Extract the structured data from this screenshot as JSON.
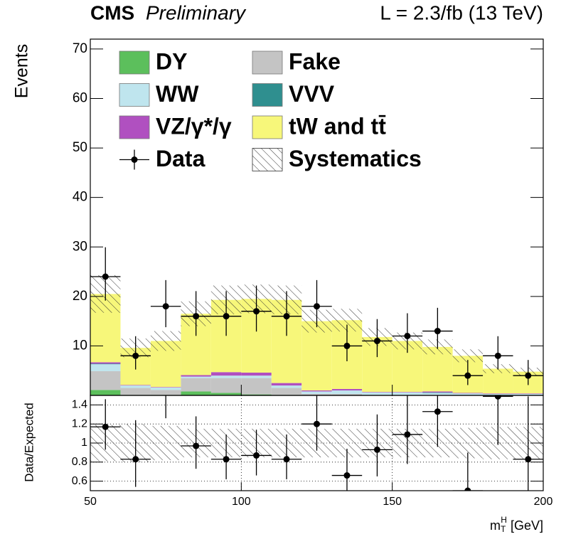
{
  "chart_data": [
    {
      "type": "stacked-histogram",
      "title": "CMS",
      "subtitle": "Preliminary",
      "lumi": "L = 2.3/fb (13 TeV)",
      "ylabel": "Events",
      "bins": [
        50,
        60,
        70,
        80,
        90,
        100,
        110,
        120,
        130,
        140,
        150,
        160,
        170,
        180,
        190,
        200
      ],
      "xlim": [
        50,
        200
      ],
      "ylim": [
        0,
        72
      ],
      "yticks": [
        10,
        20,
        30,
        40,
        50,
        60,
        70
      ],
      "series": [
        {
          "name": "DY",
          "color": "#5cbf5c",
          "values": [
            1.1,
            0.1,
            0.1,
            0.8,
            0.5,
            0.2,
            0.1,
            0,
            0,
            0,
            0,
            0,
            0,
            0,
            0
          ]
        },
        {
          "name": "Fake",
          "color": "#c4c4c4",
          "values": [
            3.8,
            1.4,
            1.0,
            2.7,
            3.0,
            3.3,
            1.4,
            0.3,
            0.3,
            0.1,
            0.1,
            0.1,
            0,
            0,
            0
          ]
        },
        {
          "name": "WW",
          "color": "#bfe5ee",
          "values": [
            1.4,
            0.5,
            0.5,
            0.3,
            0.5,
            0.5,
            0.5,
            0.5,
            0.7,
            0.5,
            0.5,
            0.4,
            0.4,
            0.3,
            0.3
          ]
        },
        {
          "name": "VVV",
          "color": "#2f8f8f",
          "values": [
            0.1,
            0,
            0,
            0,
            0,
            0,
            0,
            0,
            0,
            0,
            0,
            0.1,
            0,
            0,
            0
          ]
        },
        {
          "name": "VZ/γ*/γ",
          "color": "#b050c0",
          "values": [
            0.3,
            0.1,
            0.1,
            0.3,
            0.7,
            0.6,
            0.5,
            0.2,
            0.3,
            0.1,
            0.1,
            0.2,
            0.1,
            0.1,
            0.1
          ]
        },
        {
          "name": "tW and tt̄",
          "color": "#f7f77a",
          "values": [
            13.8,
            7.5,
            9.3,
            12.4,
            14.6,
            14.9,
            16.8,
            14.0,
            13.9,
            11.1,
            10.3,
            9.0,
            7.5,
            5.0,
            4.4
          ]
        }
      ],
      "data": {
        "name": "Data",
        "color": "#000000",
        "values": [
          24,
          8,
          18,
          16,
          16,
          17,
          16,
          18,
          10,
          11,
          12,
          13,
          4,
          8,
          4
        ],
        "errors_low": [
          4.85,
          2.77,
          4.22,
          3.97,
          3.97,
          4.1,
          3.97,
          4.22,
          3.1,
          3.26,
          3.4,
          3.58,
          1.91,
          2.77,
          1.91
        ],
        "errors_high": [
          5.94,
          3.96,
          5.3,
          5.07,
          5.07,
          5.2,
          5.07,
          5.3,
          4.3,
          4.42,
          4.6,
          4.7,
          3.16,
          3.96,
          3.16
        ]
      },
      "systematics": {
        "name": "Systematics",
        "values": [
          3.8,
          1.9,
          2.0,
          2.5,
          2.9,
          2.9,
          2.9,
          2.3,
          2.3,
          1.8,
          1.7,
          1.5,
          1.3,
          0.9,
          0.8
        ]
      }
    },
    {
      "type": "ratio",
      "ylabel": "Data/Expected",
      "xlabel": "m",
      "xlabel_sub": "T",
      "xlabel_sup": "H",
      "xlabel_unit": "[GeV]",
      "xlim": [
        50,
        200
      ],
      "xticks": [
        50,
        100,
        150,
        200
      ],
      "ylim": [
        0.5,
        1.5
      ],
      "yticks": [
        0.6,
        0.8,
        1,
        1.2,
        1.4
      ],
      "grid": true,
      "values": [
        1.17,
        0.83,
        1.64,
        0.97,
        0.83,
        0.87,
        0.83,
        1.2,
        0.66,
        0.93,
        1.09,
        1.33,
        0.5,
        1.49,
        0.83
      ],
      "errors_low": [
        0.24,
        0.29,
        0.38,
        0.24,
        0.21,
        0.21,
        0.21,
        0.28,
        0.2,
        0.28,
        0.31,
        0.37,
        0.24,
        0.51,
        0.4
      ],
      "errors_high": [
        0.29,
        0.41,
        0.48,
        0.31,
        0.26,
        0.27,
        0.26,
        0.35,
        0.28,
        0.37,
        0.42,
        0.48,
        0.4,
        0.73,
        0.66
      ],
      "band": [
        0.19,
        0.2,
        0.18,
        0.15,
        0.15,
        0.15,
        0.15,
        0.15,
        0.15,
        0.15,
        0.15,
        0.15,
        0.16,
        0.17,
        0.17
      ]
    }
  ]
}
